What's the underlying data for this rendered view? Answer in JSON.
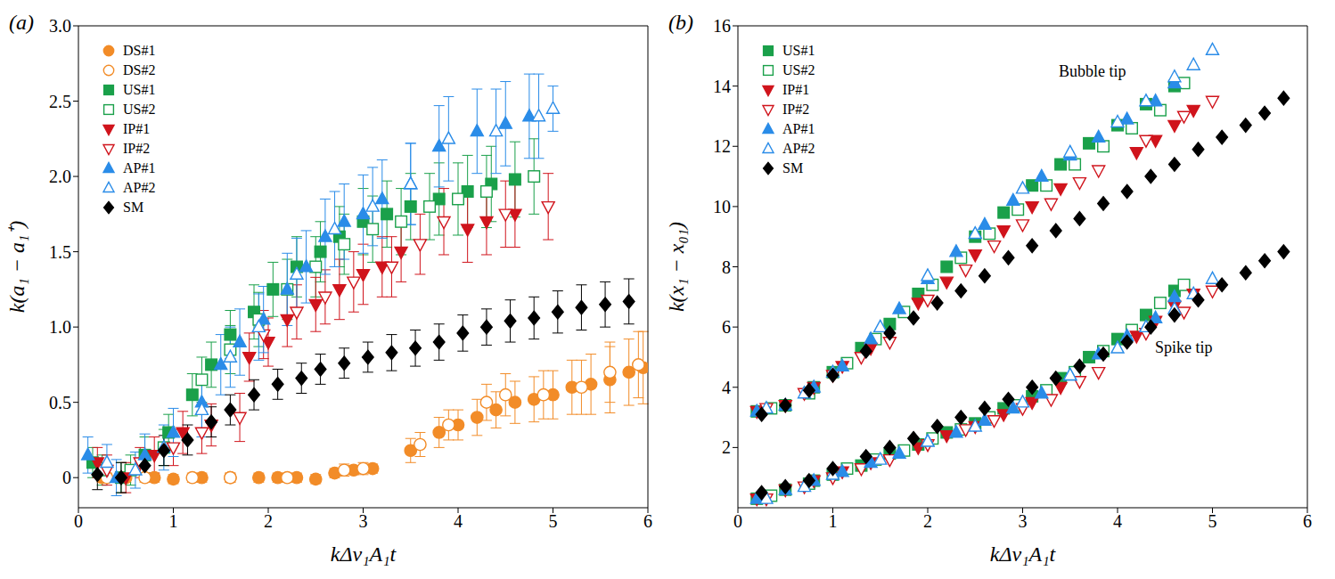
{
  "chart_data": [
    {
      "type": "scatter",
      "panel": "(a)",
      "x_label": "kΔv₁A₁t",
      "y_label": "k(a₁ − a₁⁺)",
      "legend": "upper left",
      "xlim": [
        0,
        6
      ],
      "xticks": [
        0,
        1,
        2,
        3,
        4,
        5,
        6
      ],
      "ylim": [
        -0.2,
        3.0
      ],
      "yticks": [
        0,
        0.5,
        {
          "value": 1,
          "label": "1.0"
        },
        1.5,
        {
          "value": 2,
          "label": "2.0"
        },
        2.5,
        {
          "value": 3,
          "label": "3.0"
        }
      ],
      "series": [
        {
          "name": "DS#1",
          "color": "#f28c28",
          "marker": "circle",
          "x": [
            0.25,
            0.5,
            0.8,
            1.0,
            1.3,
            1.6,
            1.9,
            2.1,
            2.3,
            2.5,
            2.7,
            2.9,
            3.1,
            3.5,
            3.8,
            4.0,
            4.2,
            4.4,
            4.6,
            4.8,
            5.0,
            5.2,
            5.4,
            5.6,
            5.8,
            5.95
          ],
          "values": [
            0,
            0,
            0,
            -0.01,
            0,
            0,
            0,
            0,
            0,
            -0.01,
            0.03,
            0.05,
            0.06,
            0.18,
            0.3,
            0.35,
            0.4,
            0.45,
            0.5,
            0.52,
            0.55,
            0.6,
            0.62,
            0.65,
            0.7,
            0.73
          ],
          "errors": [
            0.03,
            0.03,
            0.03,
            0.03,
            0.03,
            0.03,
            0.03,
            0.03,
            0.03,
            0.03,
            0.03,
            0.03,
            0.03,
            0.08,
            0.1,
            0.1,
            0.12,
            0.12,
            0.14,
            0.15,
            0.16,
            0.18,
            0.2,
            0.22,
            0.22,
            0.24
          ]
        },
        {
          "name": "DS#2",
          "color": "#f28c28",
          "marker": "circle_open",
          "x": [
            0.3,
            0.7,
            1.2,
            1.6,
            2.2,
            2.8,
            3.0,
            3.6,
            3.9,
            4.3,
            4.5,
            4.9,
            5.3,
            5.6,
            5.9
          ],
          "values": [
            0,
            0,
            0,
            0,
            0,
            0.05,
            0.06,
            0.22,
            0.35,
            0.5,
            0.55,
            0.55,
            0.6,
            0.7,
            0.75
          ],
          "errors": [
            0.03,
            0.03,
            0.03,
            0.03,
            0.03,
            0.04,
            0.04,
            0.08,
            0.1,
            0.12,
            0.14,
            0.16,
            0.18,
            0.2,
            0.22
          ]
        },
        {
          "name": "US#1",
          "color": "#1aa04a",
          "marker": "square",
          "x": [
            0.15,
            0.45,
            0.7,
            0.95,
            1.2,
            1.4,
            1.6,
            1.85,
            2.05,
            2.3,
            2.55,
            2.75,
            3.0,
            3.25,
            3.5,
            3.8,
            4.1,
            4.35,
            4.6
          ],
          "values": [
            0.1,
            0,
            0.15,
            0.3,
            0.55,
            0.75,
            0.95,
            1.1,
            1.25,
            1.4,
            1.5,
            1.6,
            1.7,
            1.75,
            1.8,
            1.85,
            1.9,
            1.95,
            1.98
          ],
          "errors": [
            0.1,
            0.1,
            0.12,
            0.12,
            0.14,
            0.15,
            0.16,
            0.18,
            0.18,
            0.2,
            0.2,
            0.2,
            0.22,
            0.22,
            0.22,
            0.24,
            0.24,
            0.25,
            0.25
          ]
        },
        {
          "name": "US#2",
          "color": "#1aa04a",
          "marker": "square_open",
          "x": [
            0.25,
            0.55,
            0.9,
            1.3,
            1.6,
            1.9,
            2.2,
            2.5,
            2.8,
            3.1,
            3.4,
            3.7,
            4.0,
            4.3,
            4.8
          ],
          "values": [
            0.05,
            0.05,
            0.2,
            0.65,
            0.85,
            1.05,
            1.25,
            1.4,
            1.55,
            1.65,
            1.7,
            1.8,
            1.85,
            1.9,
            2.0
          ],
          "errors": [
            0.1,
            0.1,
            0.12,
            0.15,
            0.16,
            0.18,
            0.2,
            0.2,
            0.2,
            0.22,
            0.22,
            0.22,
            0.24,
            0.24,
            0.25
          ]
        },
        {
          "name": "IP#1",
          "color": "#d0141c",
          "marker": "triangle_down",
          "x": [
            0.2,
            0.5,
            0.8,
            1.1,
            1.4,
            1.8,
            2.0,
            2.2,
            2.5,
            2.75,
            3.0,
            3.2,
            3.4,
            4.1,
            4.3,
            4.6
          ],
          "values": [
            0.1,
            0,
            0.15,
            0.3,
            0.35,
            0.8,
            0.9,
            1.05,
            1.15,
            1.25,
            1.35,
            1.4,
            1.5,
            1.65,
            1.7,
            1.75
          ],
          "errors": [
            0.1,
            0.1,
            0.12,
            0.14,
            0.14,
            0.16,
            0.16,
            0.18,
            0.18,
            0.2,
            0.2,
            0.2,
            0.2,
            0.22,
            0.22,
            0.22
          ]
        },
        {
          "name": "IP#2",
          "color": "#d0141c",
          "marker": "triangle_down_open",
          "x": [
            0.3,
            0.65,
            1.0,
            1.3,
            1.7,
            1.95,
            2.3,
            2.6,
            2.9,
            3.3,
            3.6,
            3.85,
            4.5,
            4.95
          ],
          "values": [
            0.05,
            0.1,
            0.2,
            0.3,
            0.4,
            0.95,
            1.1,
            1.2,
            1.3,
            1.4,
            1.55,
            1.7,
            1.75,
            1.8
          ],
          "errors": [
            0.1,
            0.1,
            0.12,
            0.14,
            0.16,
            0.16,
            0.18,
            0.18,
            0.2,
            0.2,
            0.2,
            0.22,
            0.22,
            0.22
          ]
        },
        {
          "name": "AP#1",
          "color": "#2a8ce8",
          "marker": "triangle_up",
          "x": [
            0.1,
            0.4,
            0.7,
            1.0,
            1.3,
            1.5,
            1.7,
            1.95,
            2.2,
            2.4,
            2.6,
            2.8,
            3.0,
            3.2,
            3.5,
            3.8,
            4.2,
            4.5,
            4.75
          ],
          "values": [
            0.15,
            0,
            0.15,
            0.3,
            0.5,
            0.75,
            0.9,
            1.05,
            1.25,
            1.4,
            1.6,
            1.7,
            1.75,
            1.85,
            1.95,
            2.2,
            2.3,
            2.35,
            2.4
          ],
          "errors": [
            0.12,
            0.12,
            0.14,
            0.16,
            0.18,
            0.2,
            0.22,
            0.22,
            0.24,
            0.24,
            0.25,
            0.25,
            0.26,
            0.26,
            0.27,
            0.27,
            0.28,
            0.28,
            0.28
          ]
        },
        {
          "name": "AP#2",
          "color": "#2a8ce8",
          "marker": "triangle_up_open",
          "x": [
            0.3,
            0.6,
            0.9,
            1.3,
            1.6,
            1.9,
            2.3,
            2.7,
            3.1,
            3.5,
            3.9,
            4.4,
            4.85,
            5.0
          ],
          "values": [
            0.1,
            0.05,
            0.2,
            0.45,
            0.8,
            1.0,
            1.35,
            1.65,
            1.8,
            1.95,
            2.25,
            2.3,
            2.4,
            2.45
          ],
          "errors": [
            0.12,
            0.12,
            0.15,
            0.18,
            0.2,
            0.22,
            0.24,
            0.25,
            0.26,
            0.27,
            0.28,
            0.28,
            0.28,
            0.15
          ]
        },
        {
          "name": "SM",
          "color": "#000000",
          "marker": "diamond",
          "x": [
            0.2,
            0.45,
            0.7,
            0.9,
            1.15,
            1.4,
            1.6,
            1.85,
            2.1,
            2.35,
            2.55,
            2.8,
            3.05,
            3.3,
            3.55,
            3.8,
            4.05,
            4.3,
            4.55,
            4.8,
            5.05,
            5.3,
            5.55,
            5.8
          ],
          "values": [
            0.02,
            0,
            0.08,
            0.18,
            0.25,
            0.37,
            0.45,
            0.55,
            0.62,
            0.66,
            0.72,
            0.76,
            0.8,
            0.83,
            0.86,
            0.9,
            0.96,
            1.0,
            1.04,
            1.06,
            1.1,
            1.13,
            1.15,
            1.17
          ],
          "errors": [
            0.1,
            0.1,
            0.1,
            0.1,
            0.1,
            0.1,
            0.1,
            0.1,
            0.1,
            0.1,
            0.1,
            0.1,
            0.1,
            0.12,
            0.12,
            0.12,
            0.12,
            0.12,
            0.14,
            0.14,
            0.14,
            0.15,
            0.15,
            0.15
          ]
        }
      ]
    },
    {
      "type": "scatter",
      "panel": "(b)",
      "x_label": "kΔv₁A₁t",
      "y_label": "k(x₁ − x₀₁)",
      "legend": "upper left",
      "annotations": [
        "Bubble tip",
        "Spike tip"
      ],
      "xlim": [
        0,
        6
      ],
      "xticks": [
        0,
        1,
        2,
        3,
        4,
        5,
        6
      ],
      "ylim": [
        0,
        16
      ],
      "yticks": [
        2,
        4,
        6,
        8,
        10,
        12,
        14,
        16
      ],
      "series": [
        {
          "name": "US#1",
          "color": "#1aa04a",
          "marker": "square",
          "x": [
            0.2,
            0.5,
            0.8,
            1.0,
            1.3,
            1.6,
            1.9,
            2.2,
            2.5,
            2.8,
            3.1,
            3.4,
            3.7,
            4.0,
            4.3,
            4.6
          ],
          "bubble_tip": [
            3.2,
            3.4,
            4.0,
            4.5,
            5.3,
            6.1,
            7.1,
            8.0,
            9.0,
            9.8,
            10.7,
            11.4,
            12.1,
            12.7,
            13.4,
            14.0
          ],
          "spike_tip": [
            0.3,
            0.6,
            0.9,
            1.1,
            1.4,
            1.8,
            2.1,
            2.5,
            2.8,
            3.3,
            3.7,
            4.3,
            5.0,
            5.6,
            6.4,
            7.2
          ]
        },
        {
          "name": "US#2",
          "color": "#1aa04a",
          "marker": "square_open",
          "x": [
            0.35,
            0.75,
            1.15,
            1.45,
            1.75,
            2.05,
            2.35,
            2.65,
            2.95,
            3.25,
            3.55,
            3.85,
            4.15,
            4.45,
            4.7
          ],
          "bubble_tip": [
            3.3,
            3.8,
            4.8,
            5.6,
            6.5,
            7.4,
            8.3,
            9.1,
            9.9,
            10.7,
            11.4,
            12.0,
            12.6,
            13.2,
            14.1
          ],
          "spike_tip": [
            0.4,
            0.8,
            1.3,
            1.6,
            1.9,
            2.3,
            2.6,
            3.0,
            3.4,
            3.9,
            4.5,
            5.2,
            5.9,
            6.8,
            7.4
          ]
        },
        {
          "name": "IP#1",
          "color": "#d0141c",
          "marker": "triangle_down",
          "x": [
            0.2,
            0.5,
            0.8,
            1.1,
            1.4,
            1.9,
            2.2,
            2.5,
            2.8,
            3.1,
            3.4,
            4.2,
            4.4,
            4.6,
            4.8
          ],
          "bubble_tip": [
            3.2,
            3.4,
            4.0,
            4.7,
            5.3,
            6.8,
            7.5,
            8.4,
            9.2,
            10.0,
            10.6,
            11.8,
            12.2,
            12.7,
            13.2
          ],
          "spike_tip": [
            0.3,
            0.6,
            0.9,
            1.2,
            1.5,
            2.0,
            2.4,
            2.7,
            3.1,
            3.5,
            4.0,
            5.7,
            6.2,
            6.7,
            7.1
          ]
        },
        {
          "name": "IP#2",
          "color": "#d0141c",
          "marker": "triangle_down_open",
          "x": [
            0.3,
            0.7,
            1.0,
            1.3,
            1.6,
            2.0,
            2.4,
            2.7,
            3.0,
            3.3,
            3.6,
            3.8,
            4.3,
            4.7,
            5.0
          ],
          "bubble_tip": [
            3.3,
            3.8,
            4.4,
            5.0,
            5.5,
            6.9,
            7.9,
            8.7,
            9.4,
            10.1,
            10.8,
            11.2,
            12.2,
            13.0,
            13.5
          ],
          "spike_tip": [
            0.3,
            0.7,
            1.0,
            1.3,
            1.6,
            2.1,
            2.6,
            2.9,
            3.3,
            3.6,
            4.2,
            4.5,
            5.8,
            6.5,
            7.2
          ]
        },
        {
          "name": "AP#1",
          "color": "#2a8ce8",
          "marker": "triangle_up",
          "x": [
            0.2,
            0.5,
            0.8,
            1.1,
            1.4,
            1.7,
            2.0,
            2.3,
            2.6,
            2.9,
            3.2,
            3.5,
            3.8,
            4.1,
            4.4,
            4.6
          ],
          "bubble_tip": [
            3.2,
            3.4,
            4.0,
            4.7,
            5.6,
            6.6,
            7.6,
            8.5,
            9.4,
            10.2,
            11.0,
            11.7,
            12.3,
            12.9,
            13.5,
            14.1
          ],
          "spike_tip": [
            0.3,
            0.6,
            0.9,
            1.2,
            1.5,
            1.8,
            2.2,
            2.5,
            2.9,
            3.3,
            3.8,
            4.4,
            5.1,
            5.7,
            6.3,
            7.0
          ]
        },
        {
          "name": "AP#2",
          "color": "#2a8ce8",
          "marker": "triangle_up_open",
          "x": [
            0.3,
            0.7,
            1.0,
            1.5,
            2.0,
            2.5,
            3.0,
            3.5,
            4.0,
            4.3,
            4.6,
            4.8,
            5.0
          ],
          "bubble_tip": [
            3.3,
            3.8,
            4.5,
            6.0,
            7.7,
            9.1,
            10.6,
            11.8,
            12.8,
            13.5,
            14.3,
            14.7,
            15.2
          ],
          "spike_tip": [
            0.3,
            0.7,
            1.1,
            1.6,
            2.2,
            2.7,
            3.5,
            4.4,
            5.3,
            6.0,
            6.6,
            7.1,
            7.6
          ]
        },
        {
          "name": "SM",
          "color": "#000000",
          "marker": "diamond",
          "x": [
            0.25,
            0.5,
            0.75,
            1.0,
            1.35,
            1.6,
            1.85,
            2.1,
            2.35,
            2.6,
            2.85,
            3.1,
            3.35,
            3.6,
            3.85,
            4.1,
            4.35,
            4.6,
            4.85,
            5.1,
            5.35,
            5.55,
            5.75
          ],
          "bubble_tip": [
            3.1,
            3.4,
            3.9,
            4.4,
            5.2,
            5.8,
            6.3,
            6.8,
            7.2,
            7.7,
            8.3,
            8.7,
            9.2,
            9.6,
            10.1,
            10.5,
            11.0,
            11.4,
            11.9,
            12.3,
            12.7,
            13.1,
            13.6
          ],
          "spike_tip": [
            0.5,
            0.7,
            0.9,
            1.3,
            1.7,
            2.0,
            2.3,
            2.7,
            3.0,
            3.3,
            3.6,
            4.0,
            4.3,
            4.7,
            5.1,
            5.5,
            6.0,
            6.4,
            6.9,
            7.4,
            7.8,
            8.2,
            8.5
          ]
        }
      ]
    }
  ]
}
